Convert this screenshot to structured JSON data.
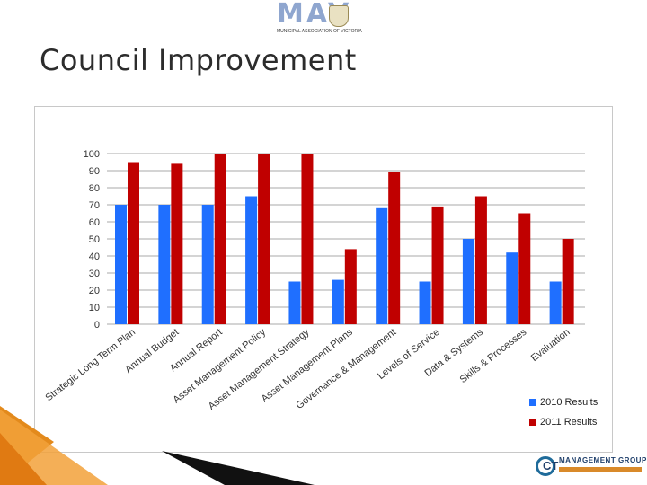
{
  "header": {
    "logo_text": "MAV",
    "logo_subtitle": "MUNICIPAL ASSOCIATION OF VICTORIA",
    "title": "Council Improvement"
  },
  "footer": {
    "company": "MANAGEMENT GROUP",
    "company_icon_letter": "CT"
  },
  "colors": {
    "series_2010": "#1f6fff",
    "series_2011": "#c00000",
    "grid": "#8c8c8c",
    "accent_orange": "#e38a1c"
  },
  "chart_data": {
    "type": "bar",
    "title": "",
    "xlabel": "",
    "ylabel": "",
    "ylim": [
      0,
      100
    ],
    "yticks": [
      0,
      10,
      20,
      30,
      40,
      50,
      60,
      70,
      80,
      90,
      100
    ],
    "grid": true,
    "legend_position": "bottom-right",
    "categories": [
      "Strategic Long Term Plan",
      "Annual Budget",
      "Annual Report",
      "Asset Management Policy",
      "Asset Management Strategy",
      "Asset Management Plans",
      "Governance & Management",
      "Levels of Service",
      "Data & Systems",
      "Skills & Processes",
      "Evaluation"
    ],
    "series": [
      {
        "name": "2010 Results",
        "values": [
          70,
          70,
          70,
          75,
          25,
          26,
          68,
          25,
          50,
          42,
          25
        ]
      },
      {
        "name": "2011 Results",
        "values": [
          95,
          94,
          100,
          100,
          100,
          44,
          89,
          69,
          75,
          65,
          50
        ]
      }
    ]
  }
}
